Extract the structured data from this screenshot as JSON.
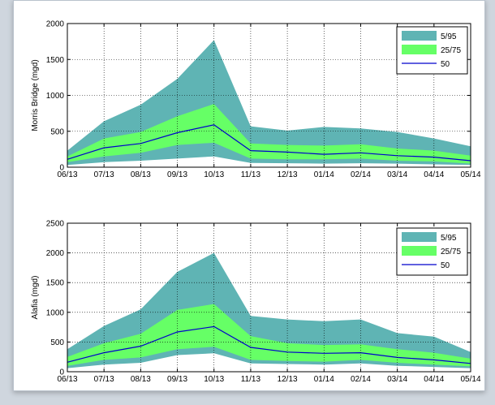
{
  "chart_data": [
    {
      "type": "area",
      "ylabel": "Morris Bridge (mgd)",
      "ylim": [
        0,
        2000
      ],
      "yticks": [
        0,
        500,
        1000,
        1500,
        2000
      ],
      "categories": [
        "06/13",
        "07/13",
        "08/13",
        "09/13",
        "10/13",
        "11/13",
        "12/13",
        "01/14",
        "02/14",
        "03/14",
        "04/14",
        "05/14"
      ],
      "bands": [
        {
          "name": "5/95",
          "color": "#5fb4b4",
          "lower": [
            30,
            70,
            90,
            120,
            150,
            60,
            55,
            50,
            55,
            50,
            40,
            30
          ],
          "upper": [
            230,
            640,
            870,
            1230,
            1770,
            570,
            510,
            560,
            540,
            490,
            400,
            290
          ]
        },
        {
          "name": "25/75",
          "color": "#66ff66",
          "lower": [
            70,
            150,
            200,
            310,
            340,
            120,
            110,
            110,
            120,
            90,
            80,
            50
          ],
          "upper": [
            150,
            400,
            490,
            710,
            880,
            330,
            310,
            300,
            320,
            260,
            230,
            160
          ]
        }
      ],
      "series": [
        {
          "name": "50",
          "color": "#0000cc",
          "values": [
            110,
            270,
            330,
            480,
            590,
            230,
            210,
            180,
            200,
            160,
            140,
            90
          ]
        }
      ],
      "legend": "top-right",
      "grid": true
    },
    {
      "type": "area",
      "ylabel": "Alafia (mgd)",
      "ylim": [
        0,
        2500
      ],
      "yticks": [
        0,
        500,
        1000,
        1500,
        2000,
        2500
      ],
      "categories": [
        "06/13",
        "07/13",
        "08/13",
        "09/13",
        "10/13",
        "11/13",
        "12/13",
        "01/14",
        "02/14",
        "03/14",
        "04/14",
        "05/14"
      ],
      "bands": [
        {
          "name": "5/95",
          "color": "#5fb4b4",
          "lower": [
            60,
            120,
            150,
            280,
            310,
            140,
            130,
            120,
            140,
            100,
            80,
            60
          ],
          "upper": [
            380,
            770,
            1050,
            1680,
            2000,
            940,
            880,
            850,
            880,
            650,
            590,
            330
          ]
        },
        {
          "name": "25/75",
          "color": "#66ff66",
          "lower": [
            100,
            200,
            240,
            380,
            420,
            200,
            180,
            170,
            200,
            150,
            120,
            90
          ],
          "upper": [
            250,
            480,
            640,
            1040,
            1140,
            600,
            480,
            450,
            460,
            380,
            320,
            220
          ]
        }
      ],
      "series": [
        {
          "name": "50",
          "color": "#0000cc",
          "values": [
            160,
            320,
            430,
            670,
            760,
            410,
            330,
            310,
            320,
            240,
            200,
            140
          ]
        }
      ],
      "legend": "top-right",
      "grid": true
    }
  ]
}
